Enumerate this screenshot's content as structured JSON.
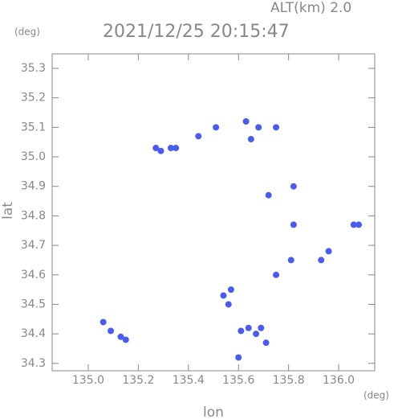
{
  "chart_data": {
    "type": "scatter",
    "title": "2021/12/25 20:15:47",
    "subtitle": "ALT(km) 2.0",
    "y_unit": "(deg)",
    "x_unit": "(deg)",
    "x_label": "lon",
    "y_label": "lat",
    "x": [
      135.27,
      135.29,
      135.33,
      135.35,
      135.44,
      135.51,
      135.63,
      135.68,
      135.65,
      135.75,
      135.82,
      135.72,
      135.82,
      136.06,
      136.08,
      135.96,
      135.93,
      135.81,
      135.75,
      135.57,
      135.54,
      135.56,
      135.64,
      135.61,
      135.67,
      135.69,
      135.71,
      135.6,
      135.06,
      135.09,
      135.13,
      135.15
    ],
    "values": [
      35.03,
      35.02,
      35.03,
      35.03,
      35.07,
      35.1,
      35.12,
      35.1,
      35.06,
      35.1,
      34.9,
      34.87,
      34.77,
      34.77,
      34.77,
      34.68,
      34.65,
      34.65,
      34.6,
      34.55,
      34.53,
      34.5,
      34.42,
      34.41,
      34.4,
      34.42,
      34.37,
      34.32,
      34.44,
      34.41,
      34.39,
      34.38
    ],
    "color": "#4a5cf0",
    "xlim": [
      134.856,
      136.144
    ],
    "ylim": [
      34.275,
      35.349
    ],
    "xticks": [
      {
        "value": 135,
        "label": "135.0"
      },
      135.2,
      135.4,
      135.6,
      135.8,
      {
        "value": 136,
        "label": "136.0"
      }
    ],
    "yticks": [
      34.3,
      34.4,
      34.5,
      34.6,
      34.7,
      34.8,
      34.9,
      {
        "value": 35,
        "label": "35.0"
      },
      35.1,
      35.2,
      35.3
    ]
  }
}
